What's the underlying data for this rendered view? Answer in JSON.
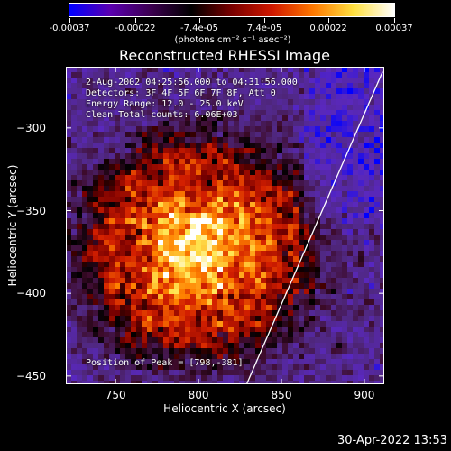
{
  "colorbar": {
    "tick_labels": [
      "-0.00037",
      "-0.00022",
      "-7.4e-05",
      "7.4e-05",
      "0.00022",
      "0.00037"
    ],
    "tick_values": [
      -0.00037,
      -0.00022,
      -7.4e-05,
      7.4e-05,
      0.00022,
      0.00037
    ],
    "range": [
      -0.00037,
      0.00037
    ],
    "unit_label": "(photons cm⁻² s⁻¹ asec⁻²)",
    "colors": [
      "#0000ff",
      "#5a00b0",
      "#3c0050",
      "#000000",
      "#7a0000",
      "#d01800",
      "#ff7800",
      "#ffe040",
      "#ffffff"
    ]
  },
  "chart_data": {
    "type": "heatmap",
    "title": "Reconstructed RHESSI Image",
    "xlabel": "Heliocentric X (arcsec)",
    "ylabel": "Heliocentric Y (arcsec)",
    "xlim": [
      720,
      912
    ],
    "ylim": [
      -455,
      -263
    ],
    "x_ticks": [
      750,
      800,
      850,
      900
    ],
    "y_ticks": [
      -300,
      -350,
      -400,
      -450
    ],
    "x_tick_labels": [
      "750",
      "800",
      "850",
      "900"
    ],
    "y_tick_labels": [
      "−300",
      "−350",
      "−400",
      "−450"
    ],
    "peak": [
      798,
      -381
    ],
    "limb_line": [
      [
        829,
        -455
      ],
      [
        911,
        -266
      ]
    ],
    "annotations": {
      "time_range": "2-Aug-2002 04:25:56.000 to 04:31:56.000",
      "detectors": "Detectors: 3F 4F 5F 6F 7F 8F, Att 0",
      "energy": "Energy Range: 12.0 - 25.0 keV",
      "clean": "Clean    Total counts: 6.06E+03",
      "peak_text": "Position of Peak = [798,-381]"
    }
  },
  "footer": {
    "timestamp": "30-Apr-2022 13:53"
  }
}
